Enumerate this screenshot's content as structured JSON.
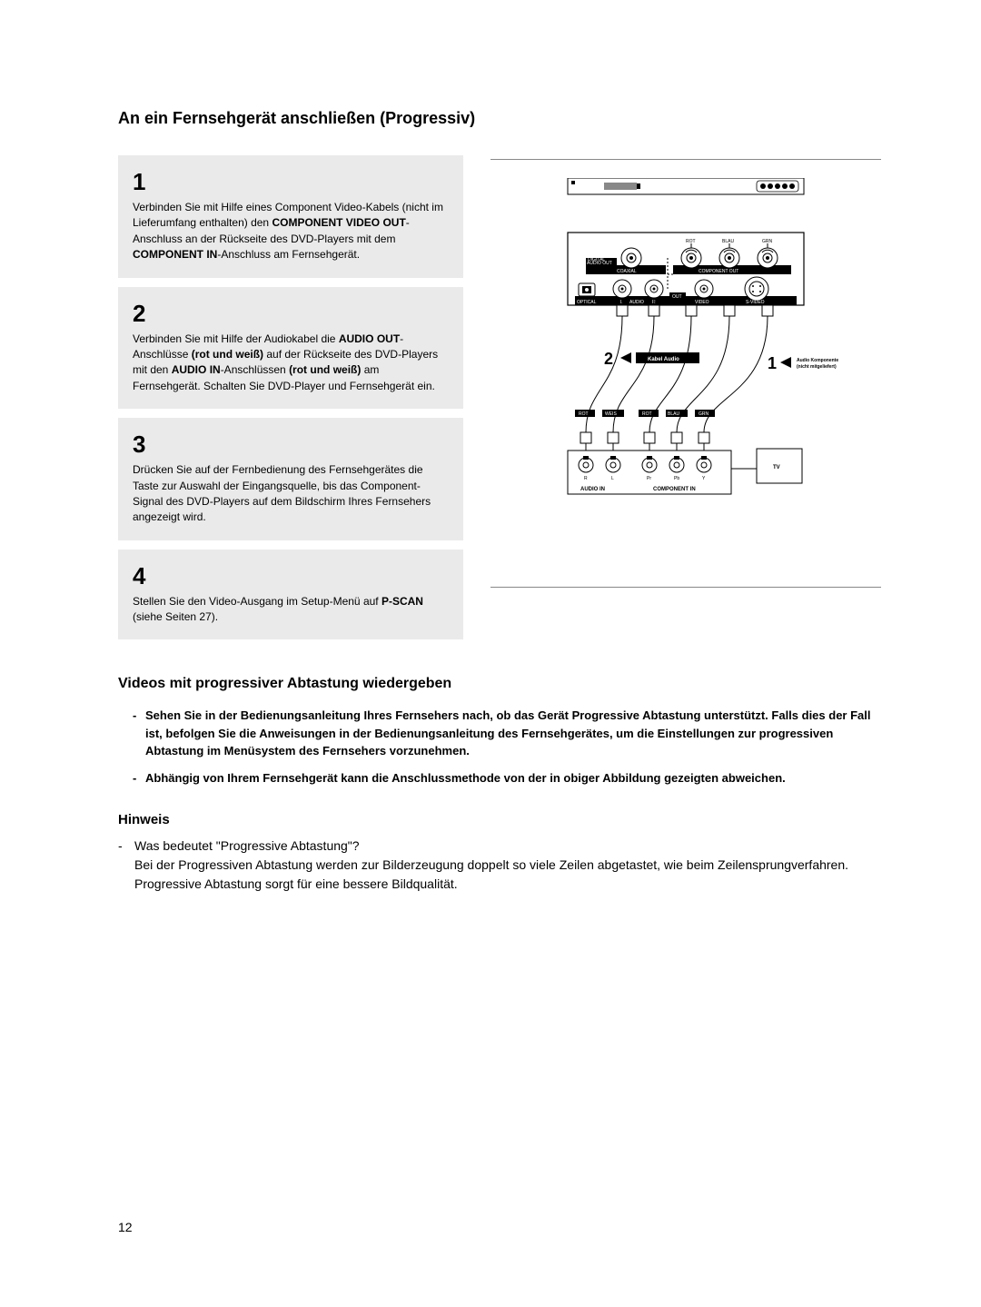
{
  "title": "An ein Fernsehgerät anschließen (Progressiv)",
  "steps": [
    {
      "num": "1",
      "html": "Verbinden Sie mit Hilfe eines Component Video-Kabels (nicht im Lieferumfang enthalten) den <b>COMPONENT VIDEO OUT</b>-Anschluss an der Rückseite des DVD-Players mit dem <b>COMPONENT IN</b>-Anschluss am Fernsehgerät."
    },
    {
      "num": "2",
      "html": "Verbinden Sie mit Hilfe der Audiokabel die <b>AUDIO OUT</b>-Anschlüsse <b>(rot und weiß)</b> auf der Rückseite des DVD-Players mit den <b>AUDIO IN</b>-Anschlüssen <b>(rot und weiß)</b> am Fernsehgerät. Schalten Sie DVD-Player und Fernsehgerät ein."
    },
    {
      "num": "3",
      "html": "Drücken Sie auf der Fernbedienung des Fernsehgerätes die Taste zur Auswahl der Eingangsquelle, bis das Component-Signal des DVD-Players auf dem Bildschirm Ihres Fernsehers angezeigt wird."
    },
    {
      "num": "4",
      "html": "Stellen Sie den Video-Ausgang im Setup-Menü auf <b>P-SCAN</b> (siehe Seiten 27)."
    }
  ],
  "subtitle": "Videos mit progressiver Abtastung wiedergeben",
  "bullets": [
    "Sehen Sie in der Bedienungsanleitung Ihres Fernsehers nach, ob das Gerät Progressive Abtastung unterstützt. Falls dies der Fall ist, befolgen Sie die Anweisungen in der Bedienungsanleitung des Fernsehgerätes, um die Einstellungen zur progressiven Abtastung im Menüsystem des Fernsehers vorzunehmen.",
    "Abhängig von Ihrem Fernsehgerät kann die Anschlussmethode von der in obiger Abbildung gezeigten abweichen."
  ],
  "hinweis": {
    "heading": "Hinweis",
    "q": "Was bedeutet \"Progressive Abtastung\"?",
    "a": "Bei der Progressiven Abtastung werden zur Bilderzeugung doppelt so viele Zeilen abgetastet, wie beim Zeilensprungverfahren. Progressive Abtastung sorgt für eine bessere Bildqualität."
  },
  "diagram": {
    "player_labels": {
      "digital_audio": "DIGITAL\nAUDIO OUT",
      "coaxial": "COAXIAL",
      "component_out": "COMPONENT OUT",
      "optical": "OPTICAL",
      "audio": "AUDIO",
      "out": "OUT",
      "video": "VIDEO",
      "s_video": "S-VIDEO",
      "rot": "ROT",
      "blau": "BLAU",
      "grn": "GRN",
      "l": "L",
      "r": "R"
    },
    "tv_labels": {
      "audio_in": "AUDIO IN",
      "component_in": "COMPONENT IN",
      "rot": "ROT",
      "weis": "WEIS",
      "blau": "BLAU",
      "grn": "GRN",
      "r": "R",
      "l": "L",
      "pr": "Pr",
      "pb": "Pb",
      "y": "Y",
      "tv": "TV"
    },
    "arrows": {
      "step2": "2",
      "step1": "1",
      "kabel_audio": "Kabel Audio",
      "audio_komp": "Audio Komponente\n(nicht mitgeliefert)"
    },
    "colors": {
      "black": "#000000",
      "white": "#ffffff",
      "gray": "#cccccc",
      "panel": "#f5f5f5",
      "dark": "#222222"
    }
  },
  "page_number": "12"
}
